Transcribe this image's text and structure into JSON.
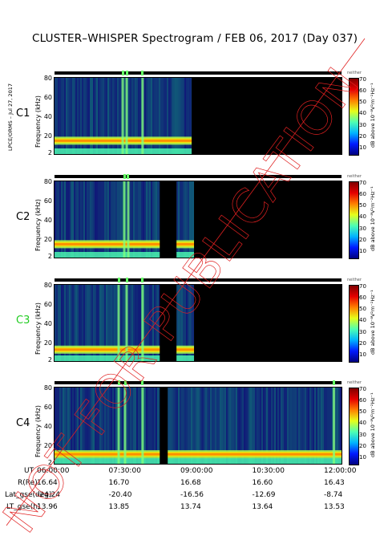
{
  "title": "CLUSTER–WHISPER Spectrogram / FEB 06, 2017 (Day 037)",
  "side_label": "LPCE/ORMS – Jul 27, 2017",
  "watermark": "NOT FOR PUBLICATION",
  "colorbar": {
    "top_label": "neither",
    "label": "dB above 10⁻⁸V²m⁻²Hz⁻¹",
    "ticks": [
      "70",
      "60",
      "50",
      "40",
      "30",
      "20",
      "10"
    ],
    "range": [
      5,
      72
    ]
  },
  "ephemeris": {
    "rows": [
      {
        "label": "UT",
        "values": [
          "06:00:00",
          "07:30:00",
          "09:00:00",
          "10:30:00",
          "12:00:00"
        ]
      },
      {
        "label": "R(Re)",
        "values": [
          "16.64",
          "16.70",
          "16.68",
          "16.60",
          "16.43"
        ]
      },
      {
        "label": "Lat_gse(deg)",
        "values": [
          "-24.24",
          "-20.40",
          "-16.56",
          "-12.69",
          "-8.74"
        ]
      },
      {
        "label": "LT_gse(h)",
        "values": [
          "13.96",
          "13.85",
          "13.74",
          "13.64",
          "13.53"
        ]
      }
    ]
  },
  "chart_data": [
    {
      "type": "heatmap",
      "spacecraft": "C1",
      "ylabel": "Frequency (kHz)",
      "yticks": [
        "80",
        "60",
        "40",
        "20",
        "2"
      ],
      "ylim": [
        2,
        82
      ],
      "xlim": [
        "06:00",
        "12:00"
      ],
      "data_gaps": [
        [
          "08:52",
          "12:00"
        ]
      ],
      "band_center_khz": 16,
      "emission_bursts": [
        "07:25",
        "07:30",
        "07:50"
      ]
    },
    {
      "type": "heatmap",
      "spacecraft": "C2",
      "ylabel": "Frequency (kHz)",
      "yticks": [
        "80",
        "60",
        "40",
        "20",
        "2"
      ],
      "ylim": [
        2,
        82
      ],
      "xlim": [
        "06:00",
        "12:00"
      ],
      "data_gaps": [
        [
          "08:12",
          "08:33"
        ],
        [
          "08:55",
          "12:00"
        ]
      ],
      "band_center_khz": 16,
      "emission_bursts": [
        "07:27",
        "07:32"
      ]
    },
    {
      "type": "heatmap",
      "spacecraft": "C3",
      "ylabel": "Frequency (kHz)",
      "yticks": [
        "80",
        "60",
        "40",
        "20",
        "2"
      ],
      "ylim": [
        2,
        82
      ],
      "xlim": [
        "06:00",
        "12:00"
      ],
      "data_gaps": [
        [
          "08:12",
          "08:33"
        ],
        [
          "08:55",
          "12:00"
        ]
      ],
      "band_center_khz": 14,
      "emission_bursts": [
        "07:20",
        "07:30",
        "07:50"
      ]
    },
    {
      "type": "heatmap",
      "spacecraft": "C4",
      "ylabel": "Frequency (kHz)",
      "yticks": [
        "80",
        "60",
        "40",
        "20",
        "2"
      ],
      "ylim": [
        2,
        82
      ],
      "xlim": [
        "06:00",
        "12:00"
      ],
      "data_gaps": [
        [
          "08:12",
          "08:22"
        ]
      ],
      "band_center_khz": 12,
      "emission_bursts": [
        "07:20",
        "07:28",
        "07:50",
        "11:50"
      ]
    }
  ],
  "panels": [
    {
      "id": "C1",
      "color": "#000000"
    },
    {
      "id": "C2",
      "color": "#000000"
    },
    {
      "id": "C3",
      "color": "#22cc22"
    },
    {
      "id": "C4",
      "color": "#000000"
    }
  ]
}
